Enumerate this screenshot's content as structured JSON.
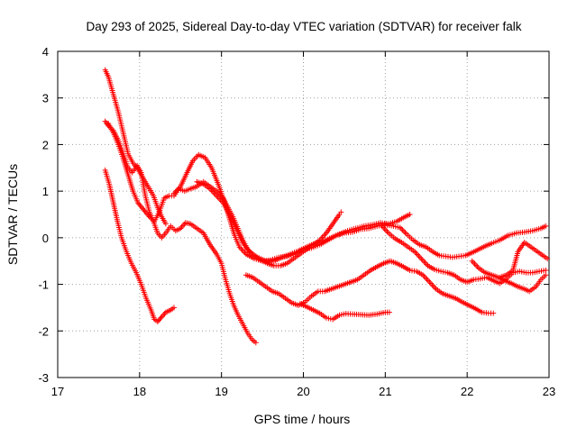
{
  "chart_data": {
    "type": "scatter",
    "title": "Day 293 of 2025, Sidereal Day-to-day VTEC variation (SDTVAR) for receiver falk",
    "xlabel": "GPS time / hours",
    "ylabel": "SDTVAR / TECUs",
    "xlim": [
      17,
      23
    ],
    "ylim": [
      -3,
      4
    ],
    "xticks": [
      17,
      18,
      19,
      20,
      21,
      22,
      23
    ],
    "xtick_labels": [
      "17",
      "18",
      "19",
      "20",
      "21",
      "22",
      "23"
    ],
    "yticks": [
      -3,
      -2,
      -1,
      0,
      1,
      2,
      3,
      4
    ],
    "ytick_labels": [
      "-3",
      "-2",
      "-1",
      "0",
      "1",
      "2",
      "3",
      "4"
    ],
    "grid": true,
    "legend": "none",
    "marker": "plus",
    "marker_color": "#ff0000",
    "series": [
      {
        "name": "s1",
        "points": [
          [
            17.58,
            3.6
          ],
          [
            17.62,
            3.45
          ],
          [
            17.66,
            3.2
          ],
          [
            17.7,
            2.95
          ],
          [
            17.74,
            2.7
          ],
          [
            17.78,
            2.4
          ],
          [
            17.82,
            2.1
          ],
          [
            17.86,
            1.8
          ],
          [
            17.92,
            1.6
          ],
          [
            17.97,
            1.5
          ],
          [
            18.02,
            1.35
          ],
          [
            18.07,
            1.2
          ],
          [
            18.12,
            1.05
          ],
          [
            18.17,
            0.9
          ],
          [
            18.22,
            0.65
          ],
          [
            18.27,
            0.45
          ],
          [
            18.32,
            0.3
          ]
        ]
      },
      {
        "name": "s2",
        "points": [
          [
            17.58,
            2.5
          ],
          [
            17.62,
            2.4
          ],
          [
            17.68,
            2.3
          ],
          [
            17.74,
            2.1
          ],
          [
            17.8,
            1.8
          ],
          [
            17.86,
            1.5
          ],
          [
            17.91,
            1.4
          ],
          [
            17.97,
            1.55
          ],
          [
            18.02,
            1.4
          ],
          [
            18.07,
            0.9
          ],
          [
            18.12,
            0.55
          ],
          [
            18.17,
            0.35
          ],
          [
            18.22,
            0.1
          ],
          [
            18.27,
            0.0
          ],
          [
            18.32,
            0.1
          ],
          [
            18.38,
            0.25
          ],
          [
            18.44,
            0.15
          ],
          [
            18.5,
            0.2
          ],
          [
            18.56,
            0.32
          ],
          [
            18.62,
            0.3
          ],
          [
            18.7,
            0.2
          ],
          [
            18.78,
            0.1
          ],
          [
            18.86,
            -0.15
          ],
          [
            18.94,
            -0.35
          ],
          [
            19.0,
            -0.55
          ],
          [
            19.05,
            -0.9
          ],
          [
            19.1,
            -1.2
          ],
          [
            19.15,
            -1.45
          ],
          [
            19.2,
            -1.65
          ],
          [
            19.26,
            -1.85
          ],
          [
            19.32,
            -2.05
          ],
          [
            19.38,
            -2.2
          ],
          [
            19.42,
            -2.25
          ]
        ]
      },
      {
        "name": "s3",
        "points": [
          [
            17.58,
            1.45
          ],
          [
            17.63,
            1.15
          ],
          [
            17.68,
            0.75
          ],
          [
            17.73,
            0.35
          ],
          [
            17.78,
            0.0
          ],
          [
            17.84,
            -0.3
          ],
          [
            17.9,
            -0.55
          ],
          [
            17.96,
            -0.75
          ],
          [
            18.02,
            -1.0
          ],
          [
            18.08,
            -1.3
          ],
          [
            18.14,
            -1.55
          ],
          [
            18.18,
            -1.75
          ],
          [
            18.22,
            -1.8
          ],
          [
            18.26,
            -1.72
          ],
          [
            18.32,
            -1.6
          ],
          [
            18.38,
            -1.55
          ],
          [
            18.42,
            -1.5
          ]
        ]
      },
      {
        "name": "s4",
        "points": [
          [
            17.62,
            2.45
          ],
          [
            17.68,
            2.25
          ],
          [
            17.74,
            2.0
          ],
          [
            17.8,
            1.7
          ],
          [
            17.86,
            1.35
          ],
          [
            17.92,
            1.0
          ],
          [
            17.98,
            0.75
          ],
          [
            18.05,
            0.6
          ],
          [
            18.12,
            0.45
          ],
          [
            18.18,
            0.35
          ],
          [
            18.24,
            0.55
          ],
          [
            18.3,
            0.85
          ],
          [
            18.36,
            0.9
          ],
          [
            18.42,
            0.9
          ],
          [
            18.48,
            1.05
          ],
          [
            18.55,
            1.0
          ],
          [
            18.62,
            1.05
          ],
          [
            18.7,
            1.1
          ],
          [
            18.78,
            1.2
          ],
          [
            18.86,
            1.1
          ],
          [
            18.94,
            1.0
          ],
          [
            19.02,
            0.85
          ],
          [
            19.08,
            0.65
          ],
          [
            19.14,
            0.45
          ],
          [
            19.2,
            0.2
          ],
          [
            19.26,
            -0.05
          ],
          [
            19.32,
            -0.25
          ],
          [
            19.4,
            -0.38
          ],
          [
            19.48,
            -0.48
          ],
          [
            19.56,
            -0.55
          ],
          [
            19.64,
            -0.6
          ],
          [
            19.72,
            -0.6
          ],
          [
            19.8,
            -0.55
          ],
          [
            19.88,
            -0.45
          ],
          [
            19.96,
            -0.35
          ],
          [
            20.04,
            -0.25
          ],
          [
            20.12,
            -0.15
          ],
          [
            20.2,
            -0.05
          ],
          [
            20.28,
            0.1
          ],
          [
            20.36,
            0.3
          ],
          [
            20.44,
            0.5
          ],
          [
            20.46,
            0.55
          ]
        ]
      },
      {
        "name": "s5",
        "points": [
          [
            18.42,
            0.95
          ],
          [
            18.5,
            1.1
          ],
          [
            18.58,
            1.4
          ],
          [
            18.65,
            1.65
          ],
          [
            18.72,
            1.78
          ],
          [
            18.8,
            1.72
          ],
          [
            18.88,
            1.5
          ],
          [
            18.96,
            1.15
          ],
          [
            19.04,
            0.75
          ],
          [
            19.1,
            0.4
          ],
          [
            19.16,
            0.05
          ],
          [
            19.22,
            -0.2
          ],
          [
            19.3,
            -0.35
          ],
          [
            19.4,
            -0.45
          ],
          [
            19.5,
            -0.5
          ],
          [
            19.6,
            -0.48
          ],
          [
            19.7,
            -0.42
          ],
          [
            19.8,
            -0.4
          ],
          [
            19.9,
            -0.35
          ],
          [
            20.0,
            -0.25
          ],
          [
            20.1,
            -0.22
          ],
          [
            20.2,
            -0.15
          ],
          [
            20.3,
            -0.05
          ],
          [
            20.4,
            0.05
          ],
          [
            20.5,
            0.1
          ],
          [
            20.6,
            0.12
          ],
          [
            20.7,
            0.18
          ],
          [
            20.8,
            0.2
          ],
          [
            20.9,
            0.25
          ],
          [
            21.0,
            0.28
          ],
          [
            21.1,
            0.25
          ],
          [
            21.18,
            0.22
          ],
          [
            21.26,
            0.08
          ],
          [
            21.34,
            -0.05
          ],
          [
            21.42,
            -0.15
          ],
          [
            21.5,
            -0.2
          ],
          [
            21.58,
            -0.3
          ],
          [
            21.66,
            -0.38
          ],
          [
            21.74,
            -0.4
          ],
          [
            21.82,
            -0.42
          ],
          [
            21.9,
            -0.4
          ],
          [
            21.98,
            -0.38
          ],
          [
            22.06,
            -0.32
          ],
          [
            22.14,
            -0.25
          ],
          [
            22.22,
            -0.18
          ],
          [
            22.3,
            -0.12
          ],
          [
            22.4,
            -0.05
          ],
          [
            22.5,
            0.05
          ],
          [
            22.6,
            0.1
          ],
          [
            22.7,
            0.12
          ],
          [
            22.8,
            0.15
          ],
          [
            22.9,
            0.2
          ],
          [
            22.96,
            0.25
          ]
        ]
      },
      {
        "name": "s6",
        "points": [
          [
            18.7,
            1.2
          ],
          [
            18.78,
            1.15
          ],
          [
            18.86,
            1.05
          ],
          [
            18.94,
            0.9
          ],
          [
            19.02,
            0.75
          ],
          [
            19.1,
            0.5
          ],
          [
            19.18,
            0.2
          ],
          [
            19.26,
            -0.1
          ],
          [
            19.34,
            -0.3
          ],
          [
            19.44,
            -0.42
          ],
          [
            19.54,
            -0.5
          ],
          [
            19.64,
            -0.5
          ],
          [
            19.74,
            -0.42
          ],
          [
            19.84,
            -0.35
          ],
          [
            19.94,
            -0.28
          ],
          [
            20.04,
            -0.2
          ],
          [
            20.14,
            -0.12
          ],
          [
            20.24,
            -0.08
          ],
          [
            20.34,
            0.0
          ],
          [
            20.44,
            0.08
          ],
          [
            20.54,
            0.15
          ],
          [
            20.64,
            0.2
          ],
          [
            20.74,
            0.25
          ],
          [
            20.84,
            0.28
          ],
          [
            20.94,
            0.32
          ],
          [
            21.04,
            0.3
          ],
          [
            21.14,
            0.35
          ],
          [
            21.24,
            0.45
          ],
          [
            21.3,
            0.5
          ]
        ]
      },
      {
        "name": "s7",
        "points": [
          [
            19.3,
            -0.8
          ],
          [
            19.38,
            -0.85
          ],
          [
            19.46,
            -0.95
          ],
          [
            19.54,
            -1.05
          ],
          [
            19.62,
            -1.15
          ],
          [
            19.7,
            -1.2
          ],
          [
            19.78,
            -1.3
          ],
          [
            19.86,
            -1.4
          ],
          [
            19.94,
            -1.45
          ],
          [
            20.02,
            -1.38
          ],
          [
            20.1,
            -1.25
          ],
          [
            20.18,
            -1.15
          ],
          [
            20.26,
            -1.15
          ],
          [
            20.34,
            -1.1
          ],
          [
            20.42,
            -1.05
          ],
          [
            20.5,
            -1.0
          ],
          [
            20.58,
            -0.95
          ],
          [
            20.66,
            -0.9
          ],
          [
            20.74,
            -0.8
          ],
          [
            20.82,
            -0.7
          ],
          [
            20.9,
            -0.62
          ],
          [
            20.98,
            -0.55
          ],
          [
            21.06,
            -0.5
          ],
          [
            21.14,
            -0.55
          ],
          [
            21.22,
            -0.62
          ],
          [
            21.3,
            -0.7
          ],
          [
            21.38,
            -0.72
          ],
          [
            21.46,
            -0.8
          ],
          [
            21.54,
            -0.95
          ],
          [
            21.62,
            -1.1
          ],
          [
            21.7,
            -1.2
          ],
          [
            21.78,
            -1.25
          ],
          [
            21.86,
            -1.3
          ],
          [
            21.94,
            -1.38
          ],
          [
            22.02,
            -1.45
          ],
          [
            22.1,
            -1.52
          ],
          [
            22.18,
            -1.6
          ],
          [
            22.26,
            -1.62
          ],
          [
            22.32,
            -1.62
          ]
        ]
      },
      {
        "name": "s8",
        "points": [
          [
            19.96,
            -1.42
          ],
          [
            20.04,
            -1.48
          ],
          [
            20.12,
            -1.55
          ],
          [
            20.2,
            -1.62
          ],
          [
            20.28,
            -1.72
          ],
          [
            20.36,
            -1.75
          ],
          [
            20.44,
            -1.66
          ],
          [
            20.52,
            -1.63
          ],
          [
            20.6,
            -1.64
          ],
          [
            20.7,
            -1.65
          ],
          [
            20.8,
            -1.66
          ],
          [
            20.9,
            -1.64
          ],
          [
            21.0,
            -1.6
          ],
          [
            21.05,
            -1.6
          ]
        ]
      },
      {
        "name": "s9",
        "points": [
          [
            20.96,
            0.25
          ],
          [
            21.04,
            0.1
          ],
          [
            21.12,
            -0.02
          ],
          [
            21.2,
            -0.1
          ],
          [
            21.28,
            -0.2
          ],
          [
            21.36,
            -0.3
          ],
          [
            21.44,
            -0.45
          ],
          [
            21.52,
            -0.6
          ],
          [
            21.6,
            -0.68
          ],
          [
            21.68,
            -0.72
          ],
          [
            21.76,
            -0.75
          ],
          [
            21.84,
            -0.8
          ],
          [
            21.92,
            -0.9
          ],
          [
            22.0,
            -0.95
          ],
          [
            22.08,
            -0.9
          ],
          [
            22.16,
            -0.88
          ],
          [
            22.24,
            -0.85
          ],
          [
            22.32,
            -0.92
          ],
          [
            22.4,
            -0.98
          ],
          [
            22.48,
            -0.88
          ],
          [
            22.56,
            -0.75
          ],
          [
            22.64,
            -0.72
          ],
          [
            22.72,
            -0.75
          ],
          [
            22.8,
            -0.75
          ],
          [
            22.88,
            -0.72
          ],
          [
            22.96,
            -0.7
          ]
        ]
      },
      {
        "name": "s10",
        "points": [
          [
            22.06,
            -0.5
          ],
          [
            22.14,
            -0.65
          ],
          [
            22.22,
            -0.75
          ],
          [
            22.3,
            -0.8
          ],
          [
            22.38,
            -0.85
          ],
          [
            22.46,
            -0.92
          ],
          [
            22.54,
            -0.98
          ],
          [
            22.62,
            -1.05
          ],
          [
            22.7,
            -1.1
          ],
          [
            22.76,
            -1.15
          ],
          [
            22.84,
            -1.05
          ],
          [
            22.9,
            -0.9
          ],
          [
            22.96,
            -0.8
          ]
        ]
      },
      {
        "name": "s11",
        "points": [
          [
            22.4,
            -0.85
          ],
          [
            22.48,
            -0.8
          ],
          [
            22.56,
            -0.7
          ],
          [
            22.62,
            -0.3
          ],
          [
            22.7,
            -0.1
          ],
          [
            22.78,
            -0.2
          ],
          [
            22.86,
            -0.3
          ],
          [
            22.94,
            -0.4
          ],
          [
            22.98,
            -0.45
          ]
        ]
      }
    ]
  }
}
